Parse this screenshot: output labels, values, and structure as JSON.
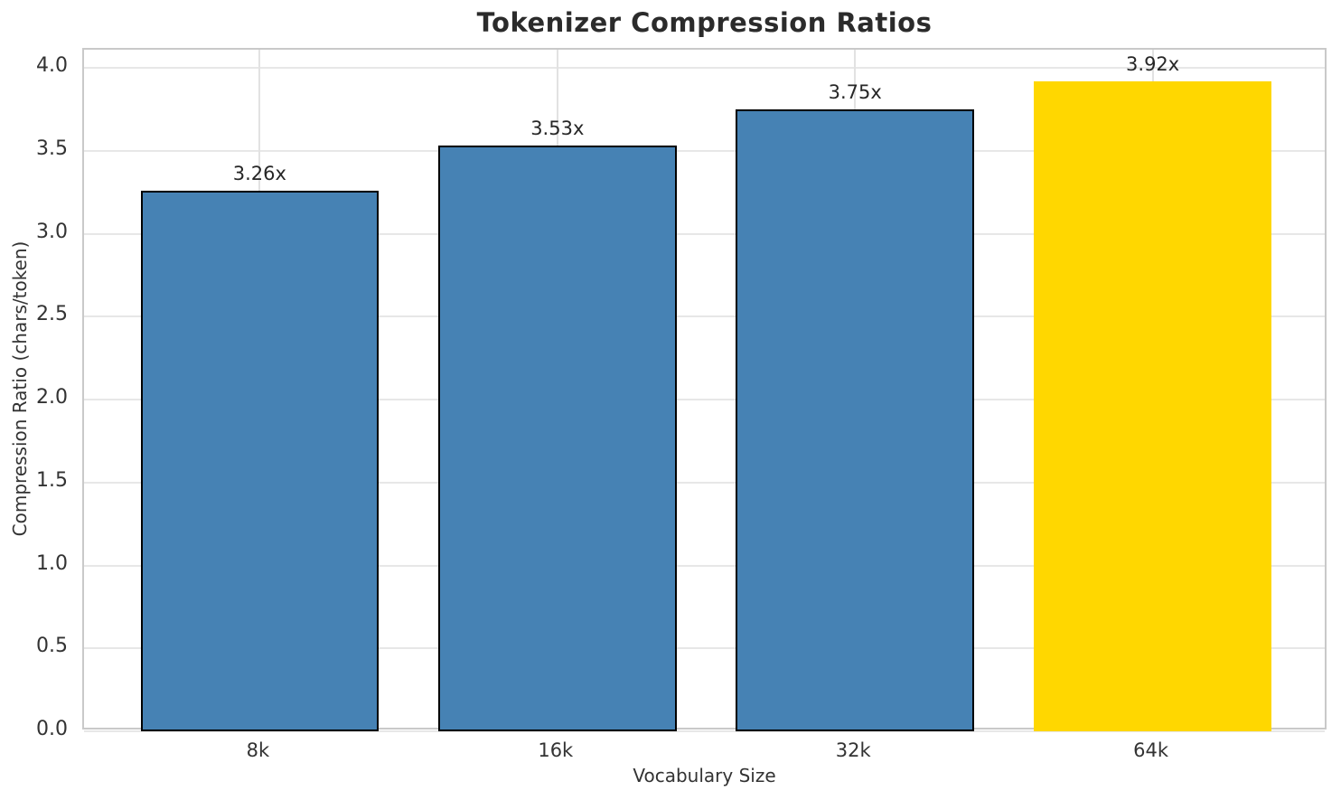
{
  "chart_data": {
    "type": "bar",
    "title": "Tokenizer Compression Ratios",
    "xlabel": "Vocabulary Size",
    "ylabel": "Compression Ratio (chars/token)",
    "categories": [
      "8k",
      "16k",
      "32k",
      "64k"
    ],
    "values": [
      3.26,
      3.53,
      3.75,
      3.92
    ],
    "bar_labels": [
      "3.26x",
      "3.53x",
      "3.75x",
      "3.92x"
    ],
    "bar_colors": [
      "#4682b4",
      "#4682b4",
      "#4682b4",
      "#ffd700"
    ],
    "bar_edge_colors": [
      "#000000",
      "#000000",
      "#000000",
      "#ffd700"
    ],
    "highlighted_category": "64k",
    "bar_width": 0.8,
    "ylim": [
      0,
      4.11
    ],
    "xlim": [
      -0.59,
      3.59
    ],
    "yticks": [
      0.0,
      0.5,
      1.0,
      1.5,
      2.0,
      2.5,
      3.0,
      3.5,
      4.0
    ],
    "ytick_labels": [
      "0.0",
      "0.5",
      "1.0",
      "1.5",
      "2.0",
      "2.5",
      "3.0",
      "3.5",
      "4.0"
    ],
    "grid": true,
    "legend": null,
    "style": {
      "accent_color": "#4682b4",
      "highlight_color": "#ffd700",
      "bar_edge_color": "#000000",
      "grid_color": "#e7e7e7",
      "spine_color": "#c9c9c9",
      "text_color": "#262626",
      "background": "#ffffff"
    }
  }
}
